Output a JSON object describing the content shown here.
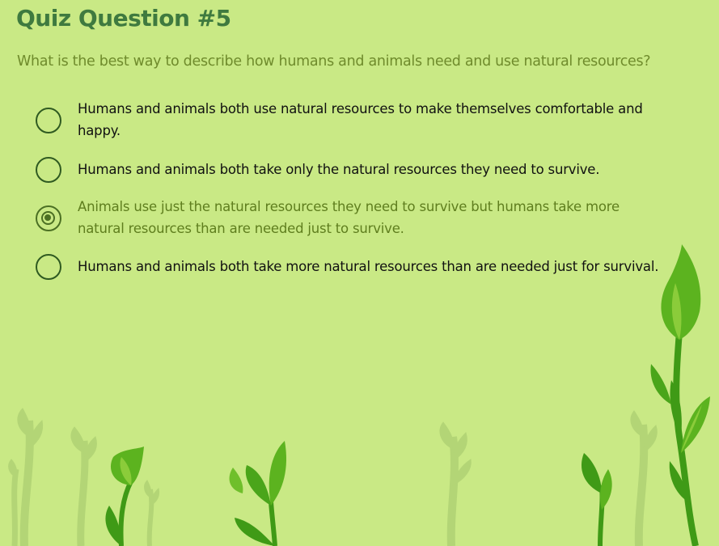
{
  "quiz": {
    "title": "Quiz Question #5",
    "question": "What is the best way to describe how humans and animals need and use natural resources?",
    "selected_index": 2,
    "options": [
      {
        "text_line1": "Humans and animals both use natural resources to make themselves comfortable and",
        "text_line2": "happy."
      },
      {
        "text_line1": "Humans and animals both take only the natural resources they need to survive.",
        "text_line2": ""
      },
      {
        "text_line1": "Animals use just the natural resources they need to survive but humans take more",
        "text_line2": "natural resources than are needed just to survive."
      },
      {
        "text_line1": "Humans and animals both take more natural resources than are needed just for survival.",
        "text_line2": ""
      }
    ]
  },
  "colors": {
    "background": "#c9e985",
    "title": "#3f7a3f",
    "question": "#6f8b2c",
    "selected": "#4b6f23",
    "leaf_dark": "#3f9a16",
    "leaf_mid": "#5cb31f",
    "leaf_light": "#8bcc3a",
    "stem_faded": "#b3d576"
  }
}
